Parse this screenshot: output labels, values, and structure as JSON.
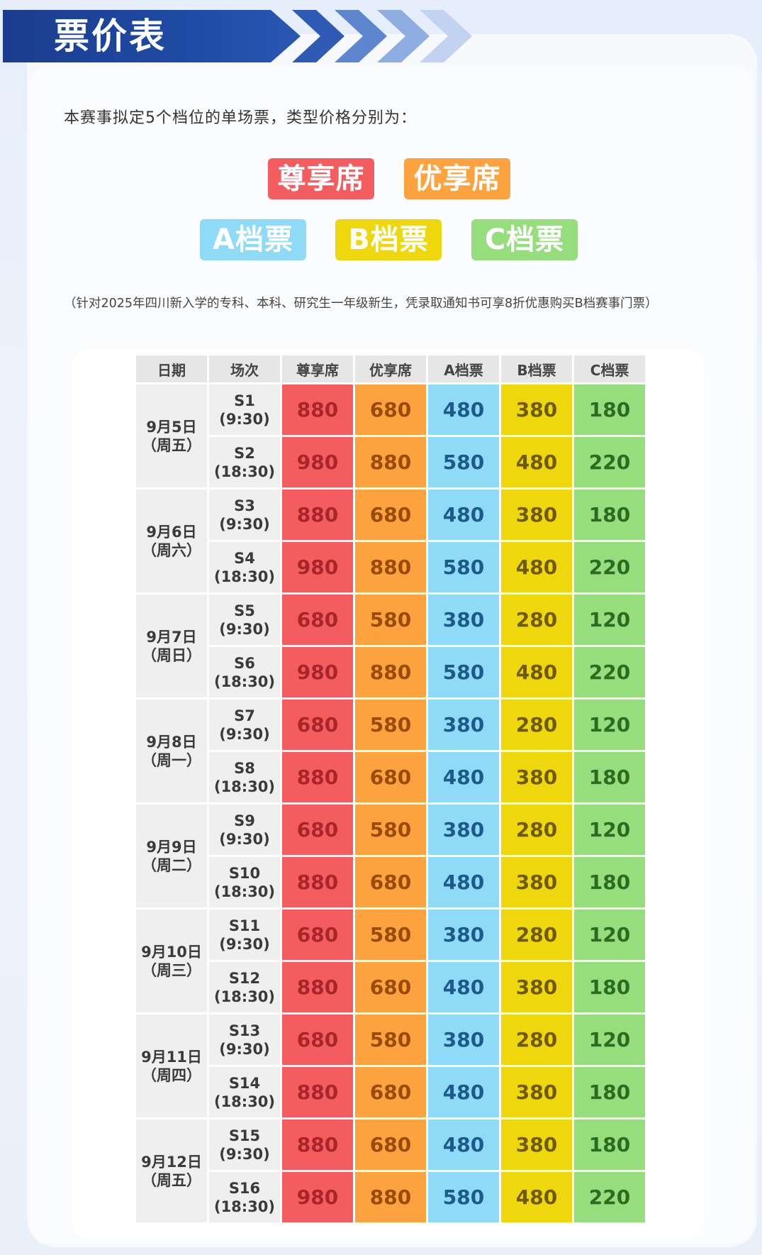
{
  "title": "票价表",
  "intro": "本赛事拟定5个档位的单场票，类型价格分别为：",
  "categories": [
    "尊享席",
    "优享席",
    "A档票",
    "B档票",
    "C档票"
  ],
  "note": "（针对2025年四川新入学的专科、本科、研究生一年级新生，凭录取通知书可享8折优惠购买B档赛事门票）",
  "colors": {
    "zunxiang": "#f45d5f",
    "youxiang": "#fca23e",
    "a": "#8fdaf6",
    "b": "#eed70c",
    "c": "#95dd7d",
    "banner": "#1f4aa3"
  },
  "table": {
    "headers": [
      "日期",
      "场次",
      "尊享席",
      "优享席",
      "A档票",
      "B档票",
      "C档票"
    ],
    "days": [
      {
        "date": "9月5日",
        "weekday": "（周五）",
        "sessions": [
          {
            "id": "S1",
            "time": "(9:30)",
            "prices": [
              "880",
              "680",
              "480",
              "380",
              "180"
            ]
          },
          {
            "id": "S2",
            "time": "(18:30)",
            "prices": [
              "980",
              "880",
              "580",
              "480",
              "220"
            ]
          }
        ]
      },
      {
        "date": "9月6日",
        "weekday": "（周六）",
        "sessions": [
          {
            "id": "S3",
            "time": "(9:30)",
            "prices": [
              "880",
              "680",
              "480",
              "380",
              "180"
            ]
          },
          {
            "id": "S4",
            "time": "(18:30)",
            "prices": [
              "980",
              "880",
              "580",
              "480",
              "220"
            ]
          }
        ]
      },
      {
        "date": "9月7日",
        "weekday": "（周日）",
        "sessions": [
          {
            "id": "S5",
            "time": "(9:30)",
            "prices": [
              "680",
              "580",
              "380",
              "280",
              "120"
            ]
          },
          {
            "id": "S6",
            "time": "(18:30)",
            "prices": [
              "980",
              "880",
              "580",
              "480",
              "220"
            ]
          }
        ]
      },
      {
        "date": "9月8日",
        "weekday": "（周一）",
        "sessions": [
          {
            "id": "S7",
            "time": "(9:30)",
            "prices": [
              "680",
              "580",
              "380",
              "280",
              "120"
            ]
          },
          {
            "id": "S8",
            "time": "(18:30)",
            "prices": [
              "880",
              "680",
              "480",
              "380",
              "180"
            ]
          }
        ]
      },
      {
        "date": "9月9日",
        "weekday": "（周二）",
        "sessions": [
          {
            "id": "S9",
            "time": "(9:30)",
            "prices": [
              "680",
              "580",
              "380",
              "280",
              "120"
            ]
          },
          {
            "id": "S10",
            "time": "(18:30)",
            "prices": [
              "880",
              "680",
              "480",
              "380",
              "180"
            ]
          }
        ]
      },
      {
        "date": "9月10日",
        "weekday": "（周三）",
        "sessions": [
          {
            "id": "S11",
            "time": "(9:30)",
            "prices": [
              "680",
              "580",
              "380",
              "280",
              "120"
            ]
          },
          {
            "id": "S12",
            "time": "(18:30)",
            "prices": [
              "880",
              "680",
              "480",
              "380",
              "180"
            ]
          }
        ]
      },
      {
        "date": "9月11日",
        "weekday": "（周四）",
        "sessions": [
          {
            "id": "S13",
            "time": "(9:30)",
            "prices": [
              "680",
              "580",
              "380",
              "280",
              "120"
            ]
          },
          {
            "id": "S14",
            "time": "(18:30)",
            "prices": [
              "880",
              "680",
              "480",
              "380",
              "180"
            ]
          }
        ]
      },
      {
        "date": "9月12日",
        "weekday": "（周五）",
        "sessions": [
          {
            "id": "S15",
            "time": "(9:30)",
            "prices": [
              "880",
              "680",
              "480",
              "380",
              "180"
            ]
          },
          {
            "id": "S16",
            "time": "(18:30)",
            "prices": [
              "980",
              "880",
              "580",
              "480",
              "220"
            ]
          }
        ]
      }
    ]
  }
}
